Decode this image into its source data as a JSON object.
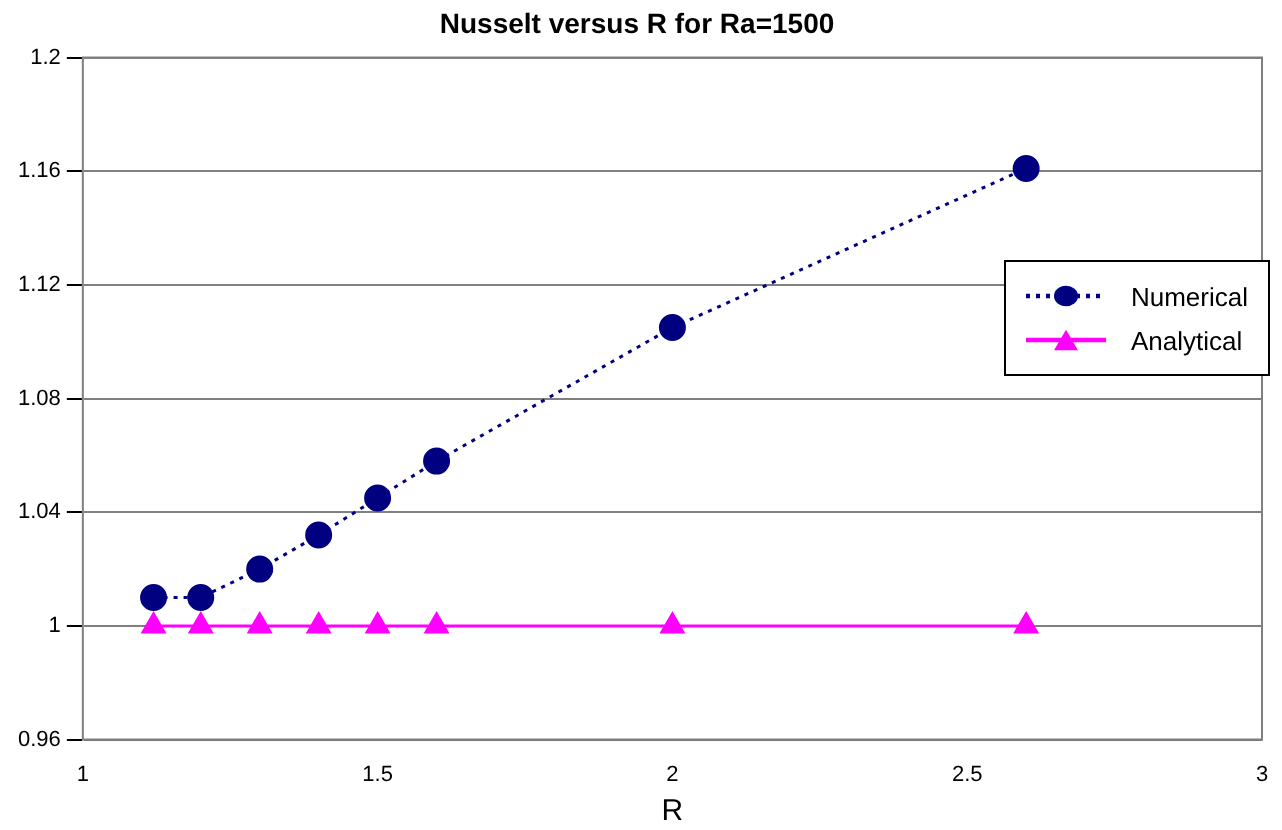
{
  "chart_data": {
    "type": "line",
    "title": "Nusselt versus R for Ra=1500",
    "xlabel": "R",
    "x": [
      1.12,
      1.2,
      1.3,
      1.4,
      1.5,
      1.6,
      2.0,
      2.6
    ],
    "series": [
      {
        "name": "Numerical",
        "color": "#000080",
        "marker": "circle",
        "line_style": "dotted",
        "values": [
          1.01,
          1.01,
          1.02,
          1.032,
          1.045,
          1.058,
          1.105,
          1.161
        ]
      },
      {
        "name": "Analytical",
        "color": "#ff00ff",
        "marker": "triangle",
        "line_style": "solid",
        "values": [
          1,
          1,
          1,
          1,
          1,
          1,
          1,
          1
        ]
      }
    ],
    "xlim": [
      1,
      3
    ],
    "xticks": [
      1,
      1.5,
      2,
      2.5,
      3
    ],
    "ylim": [
      0.96,
      1.2
    ],
    "yticks": [
      0.96,
      1,
      1.04,
      1.08,
      1.12,
      1.16,
      1.2
    ],
    "grid": "y",
    "legend": "right"
  }
}
